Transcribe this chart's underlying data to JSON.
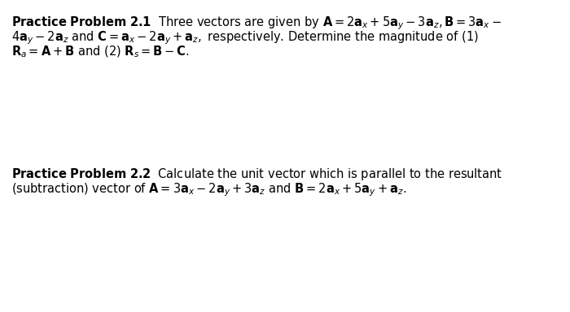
{
  "background_color": "#ffffff",
  "font_size": 10.5,
  "fig_width": 7.0,
  "fig_height": 3.84,
  "text_color": "#000000",
  "line1_p1": "$\\mathbf{Practice\\ Problem\\ 2.1}$  Three vectors are given by $\\mathbf{A} = 2\\mathbf{a}_{x} + 5\\mathbf{a}_{y} - 3\\mathbf{a}_{z}, \\mathbf{B} = 3\\mathbf{a}_{x} -$",
  "line2_p1": "$4\\mathbf{a}_{y} - 2\\mathbf{a}_{z}$ and $\\mathbf{C} = \\mathbf{a}_{x} - 2\\mathbf{a}_{y} + \\mathbf{a}_{z},$ respectively. Determine the magnitude of (1)",
  "line3_p1": "$\\mathbf{R}_{a} = \\mathbf{A} + \\mathbf{B}$ and (2) $\\mathbf{R}_{s} = \\mathbf{B} - \\mathbf{C}.$",
  "line1_p2": "$\\mathbf{Practice\\ Problem\\ 2.2}$  Calculate the unit vector which is parallel to the resultant",
  "line2_p2": "(subtraction) vector of $\\mathbf{A} = 3\\mathbf{a}_{x} - 2\\mathbf{a}_{y} + 3\\mathbf{a}_{z}$ and $\\mathbf{B} = 2\\mathbf{a}_{x} + 5\\mathbf{a}_{y} + \\mathbf{a}_{z}.$"
}
